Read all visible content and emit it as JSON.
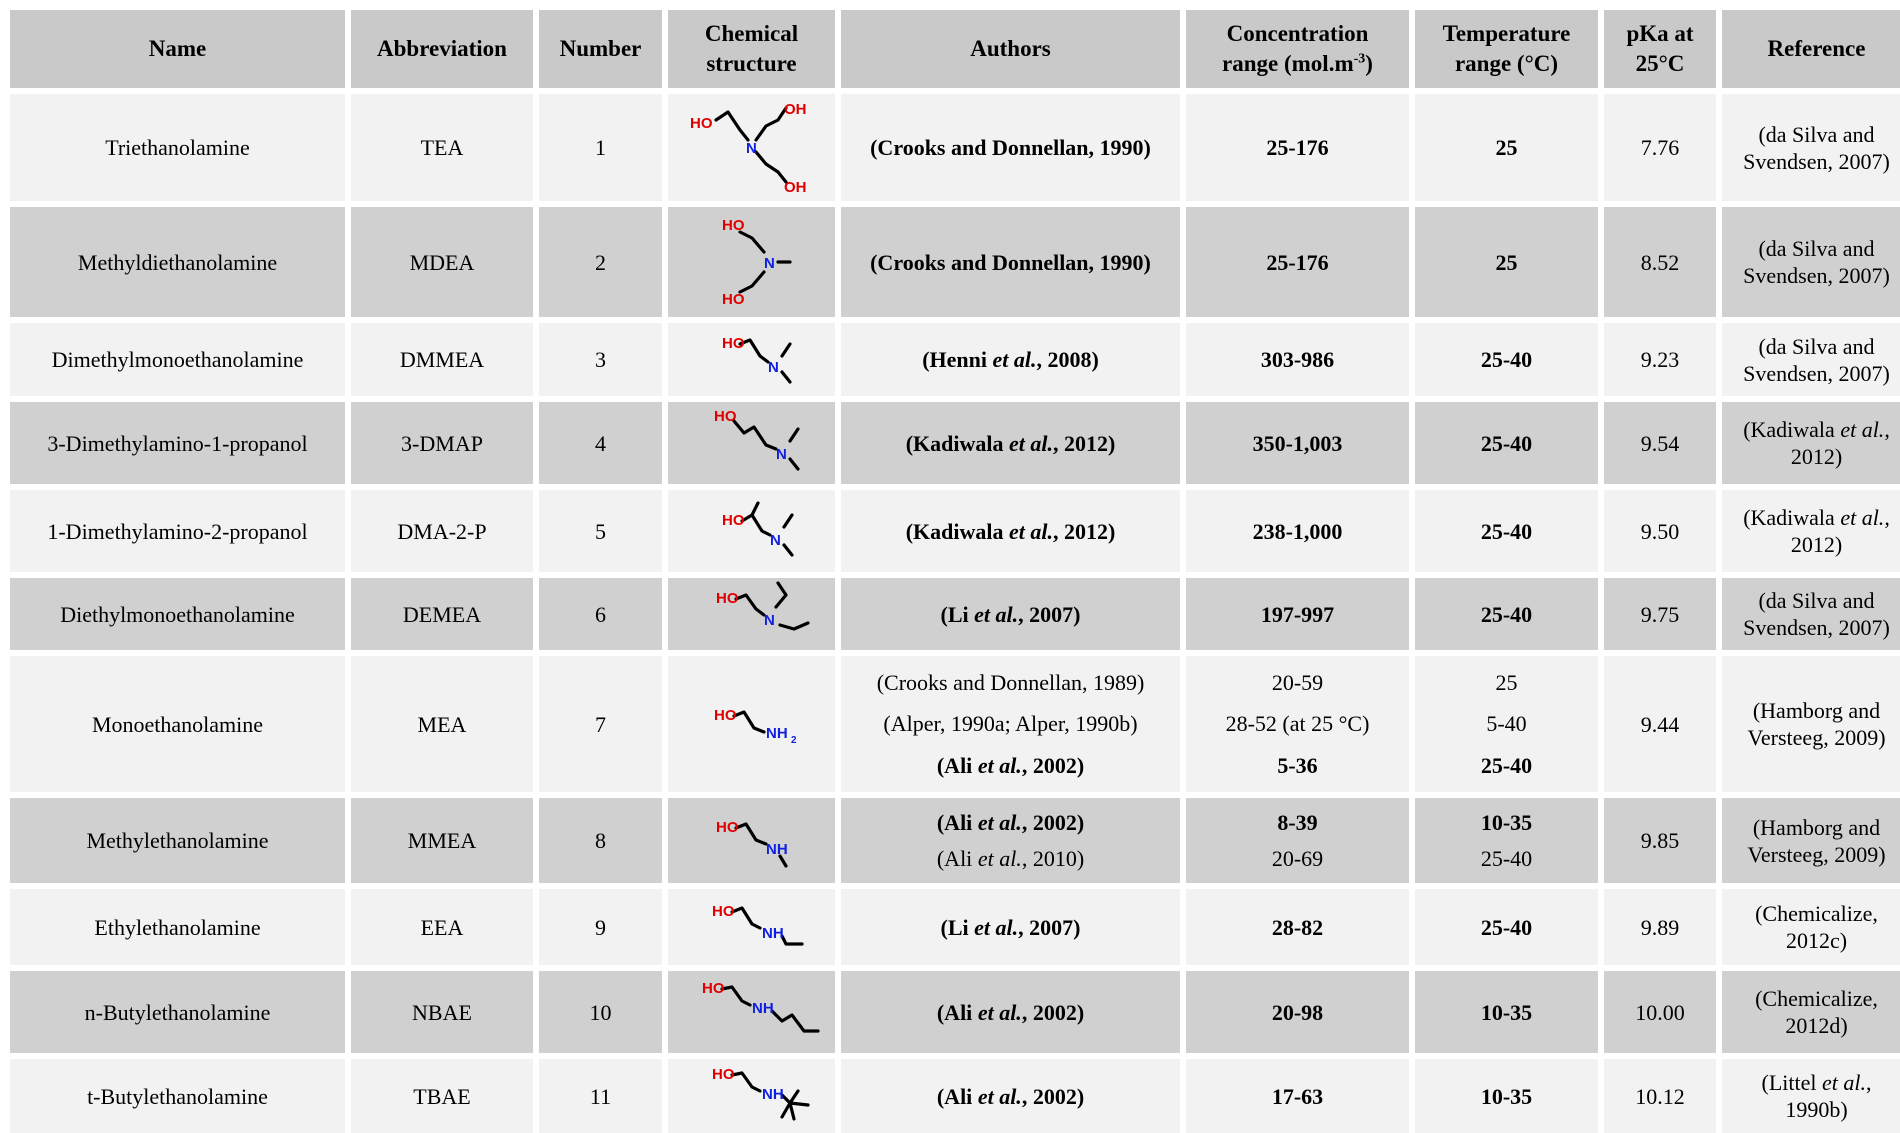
{
  "headers": {
    "name": "Name",
    "abbreviation": "Abbreviation",
    "number": "Number",
    "structure_1": "Chemical",
    "structure_2": "structure",
    "authors": "Authors",
    "conc_1": "Concentration",
    "conc_2": "range (mol.m",
    "conc_sup": "-3",
    "conc_3": ")",
    "temp_1": "Temperature",
    "temp_2": "range (°C)",
    "pka_1": "pKa at",
    "pka_2": "25°C",
    "reference": "Reference"
  },
  "rows": [
    {
      "name": "Triethanolamine",
      "abbr": "TEA",
      "number": "1",
      "authors": [
        "(Crooks and Donnellan, 1990)"
      ],
      "conc": [
        "25-176"
      ],
      "temp": [
        "25"
      ],
      "pka": "7.76",
      "ref_1": "(da Silva and",
      "ref_2": "Svendsen, 2007)"
    },
    {
      "name": "Methyldiethanolamine",
      "abbr": "MDEA",
      "number": "2",
      "authors": [
        "(Crooks and Donnellan, 1990)"
      ],
      "conc": [
        "25-176"
      ],
      "temp": [
        "25"
      ],
      "pka": "8.52",
      "ref_1": "(da Silva and",
      "ref_2": "Svendsen, 2007)"
    },
    {
      "name": "Dimethylmonoethanolamine",
      "abbr": "DMMEA",
      "number": "3",
      "authors": [
        {
          "pre": "(Henni ",
          "em": "et al.",
          "post": ", 2008)"
        }
      ],
      "conc": [
        "303-986"
      ],
      "temp": [
        "25-40"
      ],
      "pka": "9.23",
      "ref_1": "(da Silva and",
      "ref_2": "Svendsen, 2007)"
    },
    {
      "name": "3-Dimethylamino-1-propanol",
      "abbr": "3-DMAP",
      "number": "4",
      "authors": [
        {
          "pre": "(Kadiwala ",
          "em": "et al.",
          "post": ", 2012)"
        }
      ],
      "conc": [
        "350-1,003"
      ],
      "temp": [
        "25-40"
      ],
      "pka": "9.54",
      "ref_1": "(Kadiwala",
      "ref_1_em": "et al.",
      "ref_2": "2012)"
    },
    {
      "name": "1-Dimethylamino-2-propanol",
      "abbr": "DMA-2-P",
      "number": "5",
      "authors": [
        {
          "pre": "(Kadiwala ",
          "em": "et al.",
          "post": ", 2012)"
        }
      ],
      "conc": [
        "238-1,000"
      ],
      "temp": [
        "25-40"
      ],
      "pka": "9.50",
      "ref_1": "(Kadiwala",
      "ref_1_em": "et al.",
      "ref_2": "2012)"
    },
    {
      "name": "Diethylmonoethanolamine",
      "abbr": "DEMEA",
      "number": "6",
      "authors": [
        {
          "pre": "(Li ",
          "em": "et al.",
          "post": ", 2007)"
        }
      ],
      "conc": [
        "197-997"
      ],
      "temp": [
        "25-40"
      ],
      "pka": "9.75",
      "ref_1": "(da Silva and",
      "ref_2": "Svendsen, 2007)"
    },
    {
      "name": "Monoethanolamine",
      "abbr": "MEA",
      "number": "7",
      "authors": [
        "(Crooks and Donnellan, 1989)",
        "(Alper, 1990a; Alper, 1990b)",
        {
          "pre": "(Ali ",
          "em": "et al.",
          "post": ", 2002)"
        }
      ],
      "conc": [
        "20-59",
        "28-52 (at 25 °C)",
        "5-36"
      ],
      "temp": [
        "25",
        "5-40",
        "25-40"
      ],
      "pka": "9.44",
      "ref_1": "(Hamborg and",
      "ref_2": "Versteeg, 2009)"
    },
    {
      "name": "Methylethanolamine",
      "abbr": "MMEA",
      "number": "8",
      "authors": [
        {
          "pre": "(Ali ",
          "em": "et al.",
          "post": ", 2002)"
        },
        {
          "pre": "(Ali ",
          "em": "et al.",
          "post": ", 2010)"
        }
      ],
      "conc": [
        "8-39",
        "20-69"
      ],
      "temp": [
        "10-35",
        "25-40"
      ],
      "pka": "9.85",
      "ref_1": "(Hamborg and",
      "ref_2": "Versteeg, 2009)"
    },
    {
      "name": "Ethylethanolamine",
      "abbr": "EEA",
      "number": "9",
      "authors": [
        {
          "pre": "(Li ",
          "em": "et al.",
          "post": ", 2007)"
        }
      ],
      "conc": [
        "28-82"
      ],
      "temp": [
        "25-40"
      ],
      "pka": "9.89",
      "ref_1": "(Chemicalize,",
      "ref_2": "2012c)"
    },
    {
      "name": "n-Butylethanolamine",
      "abbr": "NBAE",
      "number": "10",
      "authors": [
        {
          "pre": "(Ali ",
          "em": "et al.",
          "post": ", 2002)"
        }
      ],
      "conc": [
        "20-98"
      ],
      "temp": [
        "10-35"
      ],
      "pka": "10.00",
      "ref_1": "(Chemicalize,",
      "ref_2": "2012d)"
    },
    {
      "name": "t-Butylethanolamine",
      "abbr": "TBAE",
      "number": "11",
      "authors": [
        {
          "pre": "(Ali ",
          "em": "et al.",
          "post": ", 2002)"
        }
      ],
      "conc": [
        "17-63"
      ],
      "temp": [
        "10-35"
      ],
      "pka": "10.12",
      "ref_1": "(Littel",
      "ref_1_em": "et al.",
      "ref_1_post": ",",
      "ref_2": "1990b)"
    }
  ],
  "bold_flags": {
    "authors": [
      [
        true
      ],
      [
        true
      ],
      [
        true
      ],
      [
        true
      ],
      [
        true
      ],
      [
        true
      ],
      [
        false,
        false,
        true
      ],
      [
        true,
        false
      ],
      [
        true
      ],
      [
        true
      ],
      [
        true
      ]
    ]
  },
  "atom_labels": {
    "oh": "OH",
    "ho": "HO",
    "n": "N",
    "nh": "NH",
    "nh2": "NH",
    "sub2": "2"
  },
  "colors": {
    "header_bg": "#c9c9c9",
    "row_light": "#f2f2f2",
    "row_dark": "#d0d0d0",
    "oxygen": "#e00000",
    "nitrogen": "#1020e0"
  }
}
